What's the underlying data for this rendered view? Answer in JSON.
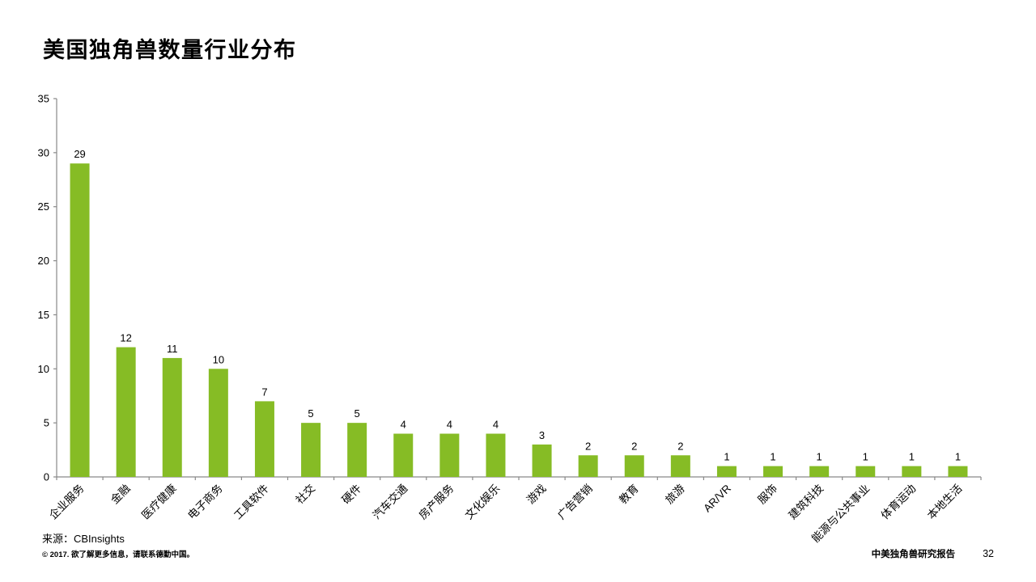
{
  "title": "美国独角兽数量行业分布",
  "chart_data": {
    "type": "bar",
    "title": "美国独角兽数量行业分布",
    "categories": [
      "企业服务",
      "金融",
      "医疗健康",
      "电子商务",
      "工具软件",
      "社交",
      "硬件",
      "汽车交通",
      "房产服务",
      "文化娱乐",
      "游戏",
      "广告营销",
      "教育",
      "旅游",
      "AR/VR",
      "服饰",
      "建筑科技",
      "能源与公共事业",
      "体育运动",
      "本地生活"
    ],
    "values": [
      29,
      12,
      11,
      10,
      7,
      5,
      5,
      4,
      4,
      4,
      3,
      2,
      2,
      2,
      1,
      1,
      1,
      1,
      1,
      1
    ],
    "xlabel": "",
    "ylabel": "",
    "ylim": [
      0,
      35
    ],
    "yticks": [
      0,
      5,
      10,
      15,
      20,
      25,
      30,
      35
    ],
    "grid": false,
    "legend": "none",
    "data_labels": true,
    "bar_color": "#86BC25",
    "axis_color": "#898989",
    "text_color": "#000000"
  },
  "footer": {
    "source": "来源：CBInsights",
    "copyright": "© 2017. 欲了解更多信息，请联系德勤中国。",
    "report_title": "中美独角兽研究报告",
    "page_number": "32"
  }
}
